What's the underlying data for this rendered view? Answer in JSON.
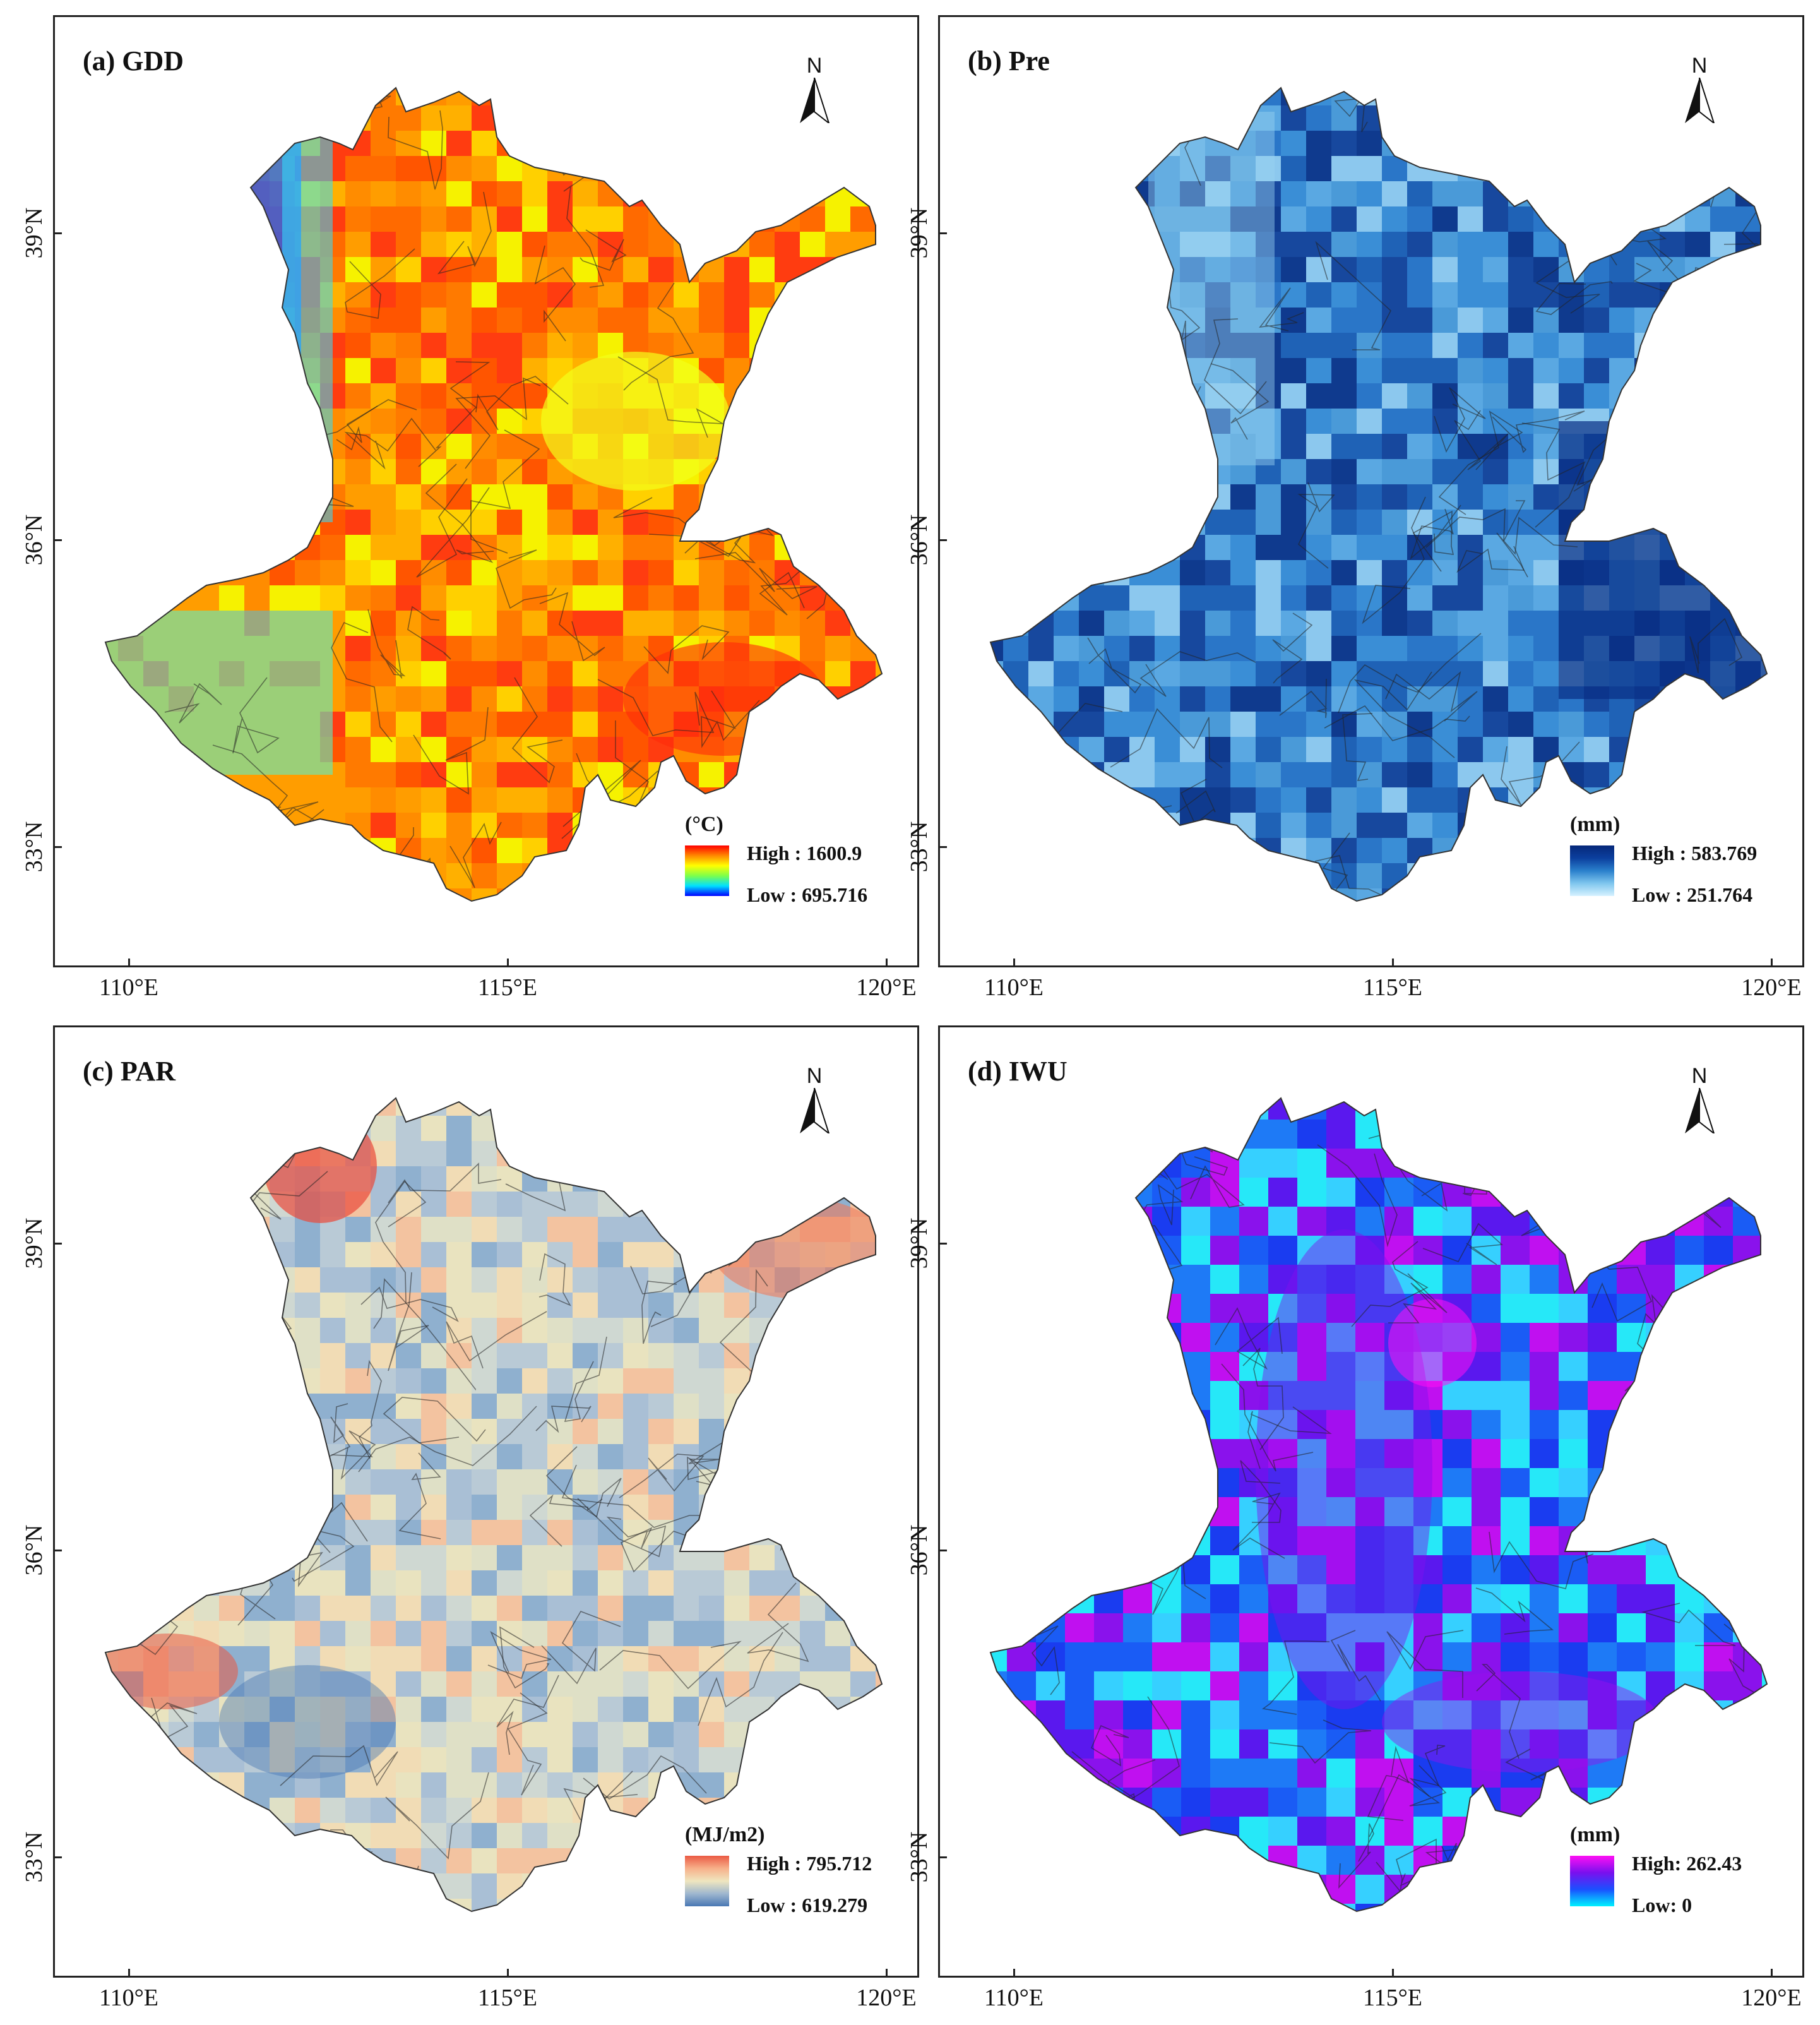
{
  "panels": [
    {
      "id": "gdd",
      "title": "(a) GDD",
      "unit": "(°C)",
      "high": "High : 1600.9",
      "low": "Low : 695.716",
      "ramp": [
        "#0000ff",
        "#00e0ff",
        "#7dff4a",
        "#ffff00",
        "#ff8800",
        "#ff0000"
      ],
      "palette": [
        "#ff7a00",
        "#ff8c00",
        "#ff6a00",
        "#ff9d00",
        "#ffb000",
        "#ffd000",
        "#f6f200",
        "#ff5500",
        "#ff3c10"
      ]
    },
    {
      "id": "pre",
      "title": "(b) Pre",
      "unit": "(mm)",
      "high": "High : 583.769",
      "low": "Low : 251.764",
      "ramp": [
        "#d6f2ff",
        "#7fc6ee",
        "#2a80cc",
        "#0b3f9e",
        "#06287a"
      ],
      "palette": [
        "#2a76c8",
        "#3a8ed6",
        "#1f62b6",
        "#5aa8e2",
        "#8cc8ee",
        "#17489e",
        "#0f3a8e",
        "#4a9ad8"
      ]
    },
    {
      "id": "par",
      "title": "(c) PAR",
      "unit": "(MJ/m2)",
      "high": "High : 795.712",
      "low": "Low : 619.279",
      "ramp": [
        "#4a78b4",
        "#9fb7cf",
        "#efe6bf",
        "#f7b08a",
        "#ea5a44"
      ],
      "palette": [
        "#dfe0c6",
        "#cfd8d2",
        "#e9e3bf",
        "#b9cad6",
        "#f1dcb5",
        "#a9bfd5",
        "#8fb0cf",
        "#f3c3a0"
      ]
    },
    {
      "id": "iwu",
      "title": "(d) IWU",
      "unit": "(mm)",
      "high": "High: 262.43",
      "low": "Low: 0",
      "ramp": [
        "#00f2ff",
        "#1a50ff",
        "#7a10ee",
        "#ff10f4"
      ],
      "palette": [
        "#26e8f8",
        "#1a5cf5",
        "#1a3cf0",
        "#5a18ee",
        "#8a12ec",
        "#36d0ff",
        "#1e7af6",
        "#c010f0"
      ]
    }
  ],
  "north_label": "N",
  "x_ticks": [
    "110°E",
    "115°E",
    "120°E"
  ],
  "y_ticks": [
    "39°N",
    "36°N",
    "33°N"
  ]
}
